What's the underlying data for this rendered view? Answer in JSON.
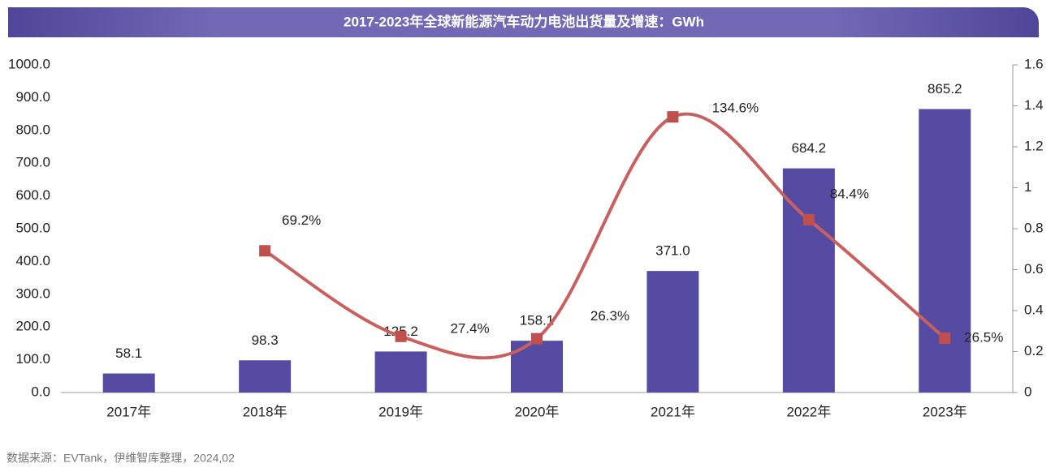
{
  "chart_data": {
    "type": "bar-line",
    "title": "2017-2023年全球新能源汽车动力电池出货量及增速：GWh",
    "categories": [
      "2017年",
      "2018年",
      "2019年",
      "2020年",
      "2021年",
      "2022年",
      "2023年"
    ],
    "series": [
      {
        "type": "bar",
        "color": "#564ba2",
        "values": [
          58.1,
          98.3,
          125.2,
          158.1,
          371.0,
          684.2,
          865.2
        ],
        "value_labels": [
          "58.1",
          "98.3",
          "125.2",
          "158.1",
          "371.0",
          "684.2",
          "865.2"
        ]
      },
      {
        "type": "line",
        "axis": "y2",
        "color": "#c9605f",
        "values": [
          null,
          0.692,
          0.274,
          0.263,
          1.346,
          0.844,
          0.265
        ],
        "value_labels": [
          null,
          "69.2%",
          "27.4%",
          "26.3%",
          "134.6%",
          "84.4%",
          "26.5%"
        ]
      }
    ],
    "ylim": [
      0,
      1000
    ],
    "yticks": [
      {
        "value": 0,
        "label": "0.0"
      },
      {
        "value": 100,
        "label": "100.0"
      },
      {
        "value": 200,
        "label": "200.0"
      },
      {
        "value": 300,
        "label": "300.0"
      },
      {
        "value": 400,
        "label": "400.0"
      },
      {
        "value": 500,
        "label": "500.0"
      },
      {
        "value": 600,
        "label": "600.0"
      },
      {
        "value": 700,
        "label": "700.0"
      },
      {
        "value": 800,
        "label": "800.0"
      },
      {
        "value": 900,
        "label": "900.0"
      },
      {
        "value": 1000,
        "label": "1000.0"
      }
    ],
    "y2lim": [
      0,
      1.6
    ],
    "y2ticks": [
      0,
      0.2,
      0.4,
      0.6,
      0.8,
      1,
      1.2,
      1.4,
      1.6
    ],
    "note": "数据来源：EVTank，伊维智库整理，2024,02"
  }
}
